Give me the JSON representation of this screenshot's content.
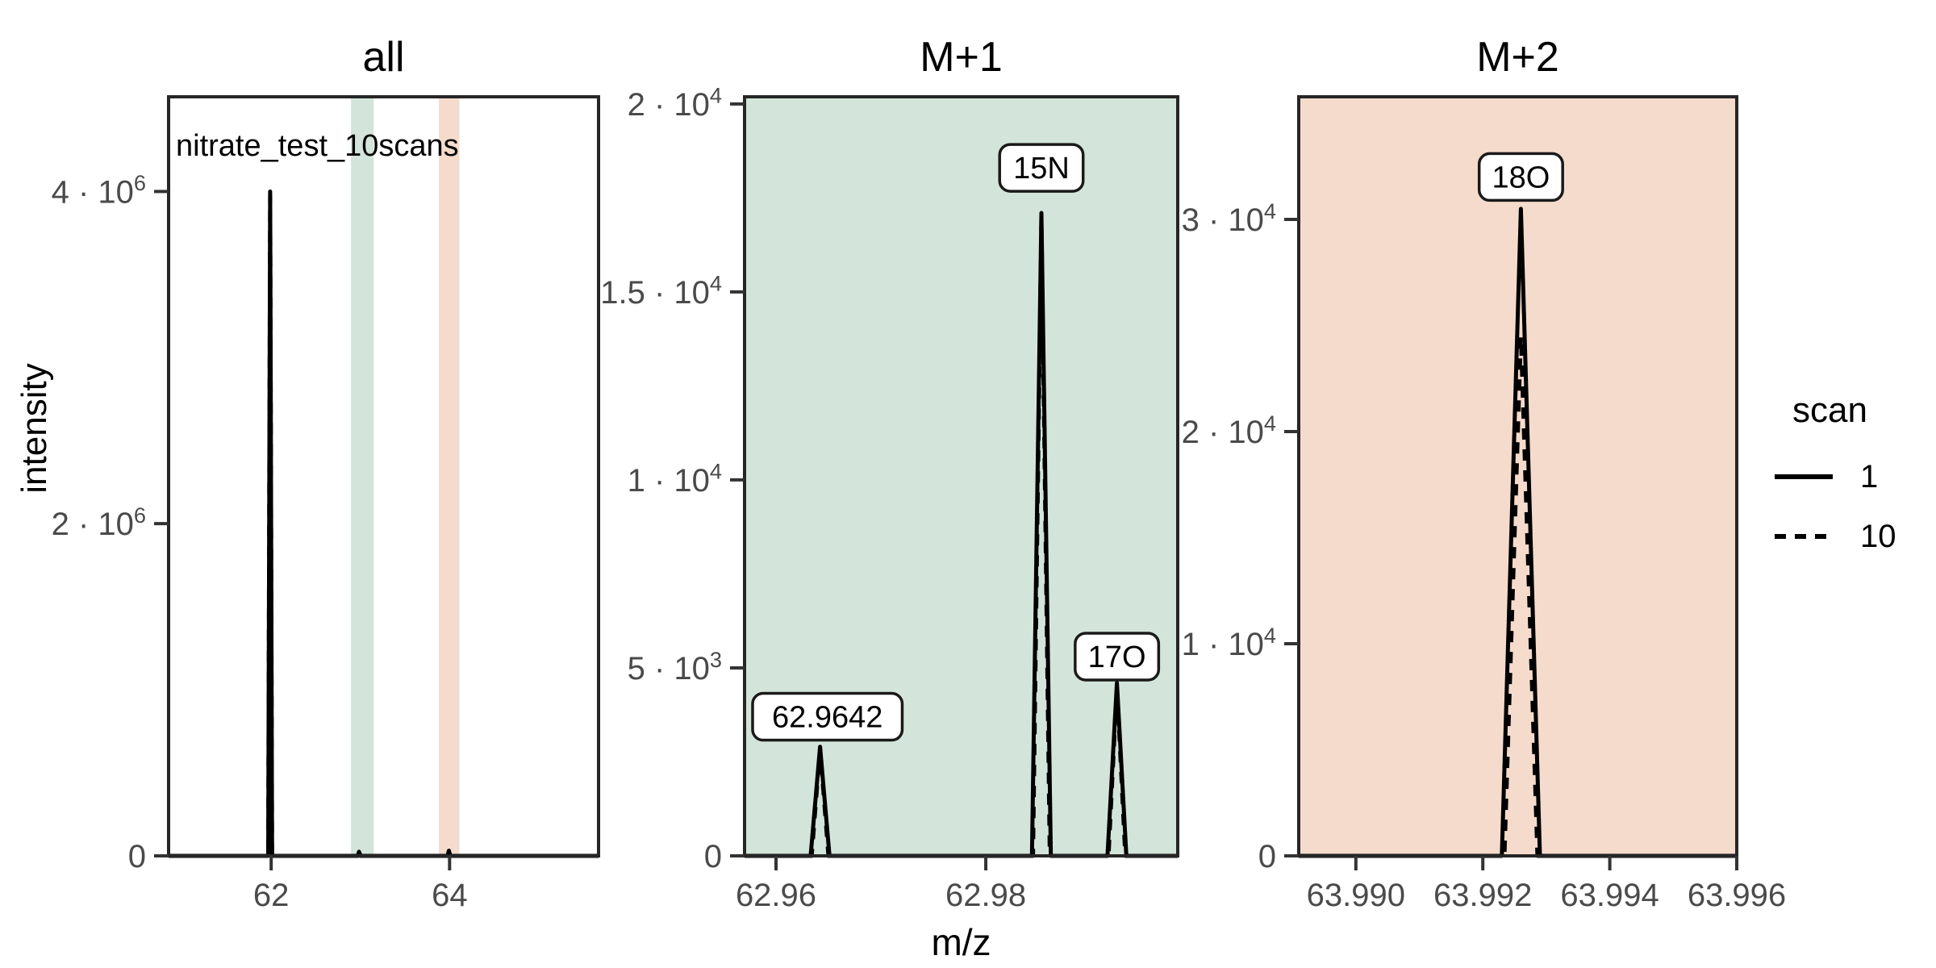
{
  "figure": {
    "background": "#ffffff"
  },
  "axes": {
    "y_label": "intensity",
    "x_label": "m/z"
  },
  "annotation": "nitrate_test_10scans",
  "legend": {
    "title": "scan",
    "items": [
      {
        "label": "1",
        "linetype": "solid"
      },
      {
        "label": "10",
        "linetype": "dashed"
      }
    ]
  },
  "colors": {
    "line": "#000000",
    "panel_border": "#262626",
    "tick": "#333333",
    "tick_text": "#4a4a4a",
    "text": "#000000",
    "m1_fill": "#d3e5da",
    "m2_fill": "#f5dbcb",
    "label_box_fill": "#ffffff",
    "label_box_border": "#1a1a1a"
  },
  "chart_data": [
    {
      "type": "line",
      "kind": "mass-spectrum",
      "title": "all",
      "panel_bg": "#ffffff",
      "x_range": [
        60.85,
        65.67
      ],
      "y_range": [
        0,
        4570000
      ],
      "x_ticks": [
        {
          "v": 62,
          "label": "62"
        },
        {
          "v": 64,
          "label": "64"
        }
      ],
      "y_ticks": [
        {
          "v": 0,
          "label": "0"
        },
        {
          "v": 2000000,
          "label": "2 · 10^6"
        },
        {
          "v": 4000000,
          "label": "4 · 10^6"
        }
      ],
      "bands": [
        {
          "name": "m1-window",
          "x0": 62.895,
          "x1": 63.15,
          "fill": "m1_fill"
        },
        {
          "name": "m2-window",
          "x0": 63.88,
          "x1": 64.11,
          "fill": "m2_fill"
        }
      ],
      "series": [
        {
          "name": "1",
          "linetype": "solid",
          "peaks": [
            {
              "mz": 61.9884,
              "intensity": 4000000,
              "hw": 0.022
            },
            {
              "mz": 62.9853,
              "intensity": 25000,
              "hw": 0.015
            },
            {
              "mz": 63.9926,
              "intensity": 31000,
              "hw": 0.015
            }
          ]
        },
        {
          "name": "10",
          "linetype": "dashed",
          "peaks": [
            {
              "mz": 61.9884,
              "intensity": 3970000,
              "hw": 0.022
            },
            {
              "mz": 62.9853,
              "intensity": 24000,
              "hw": 0.015
            },
            {
              "mz": 63.9926,
              "intensity": 30000,
              "hw": 0.015
            }
          ]
        }
      ],
      "peak_labels": []
    },
    {
      "type": "line",
      "kind": "mass-spectrum",
      "title": "M+1",
      "panel_bg": "#d3e5da",
      "x_range": [
        62.957,
        62.9983
      ],
      "y_range": [
        0,
        20190
      ],
      "x_ticks": [
        {
          "v": 62.96,
          "label": "62.96"
        },
        {
          "v": 62.98,
          "label": "62.98"
        }
      ],
      "y_ticks": [
        {
          "v": 0,
          "label": "0"
        },
        {
          "v": 5000,
          "label": "5 · 10^3"
        },
        {
          "v": 10000,
          "label": "1 · 10^4"
        },
        {
          "v": 15000,
          "label": "1.5 · 10^4"
        },
        {
          "v": 20000,
          "label": "2 · 10^4"
        }
      ],
      "bands": [],
      "series": [
        {
          "name": "1",
          "linetype": "solid",
          "peaks": [
            {
              "mz": 62.9642,
              "intensity": 2900,
              "hw": 0.0009
            },
            {
              "mz": 62.9853,
              "intensity": 17100,
              "hw": 0.0009
            },
            {
              "mz": 62.9925,
              "intensity": 4600,
              "hw": 0.0009
            }
          ]
        },
        {
          "name": "10",
          "linetype": "dashed",
          "peaks": [
            {
              "mz": 62.9642,
              "intensity": 2850,
              "hw": 0.0008
            },
            {
              "mz": 62.9853,
              "intensity": 16950,
              "hw": 0.0008
            },
            {
              "mz": 62.9925,
              "intensity": 4520,
              "hw": 0.0008
            }
          ]
        }
      ],
      "peak_labels": [
        {
          "text": "62.9642",
          "mz": 62.9649,
          "intensity": 3700
        },
        {
          "text": "15N",
          "mz": 62.9853,
          "intensity": 18300
        },
        {
          "text": "17O",
          "mz": 62.9925,
          "intensity": 5300
        }
      ]
    },
    {
      "type": "line",
      "kind": "mass-spectrum",
      "title": "M+2",
      "panel_bg": "#f5dbcb",
      "x_range": [
        63.9891,
        63.996
      ],
      "y_range": [
        0,
        35780
      ],
      "x_ticks": [
        {
          "v": 63.99,
          "label": "63.990"
        },
        {
          "v": 63.992,
          "label": "63.992"
        },
        {
          "v": 63.994,
          "label": "63.994"
        },
        {
          "v": 63.996,
          "label": "63.996"
        }
      ],
      "y_ticks": [
        {
          "v": 0,
          "label": "0"
        },
        {
          "v": 10000,
          "label": "1 · 10^4"
        },
        {
          "v": 20000,
          "label": "2 · 10^4"
        },
        {
          "v": 30000,
          "label": "3 · 10^4"
        }
      ],
      "bands": [],
      "series": [
        {
          "name": "1",
          "linetype": "solid",
          "peaks": [
            {
              "mz": 63.9926,
              "intensity": 30500,
              "hw": 0.0003
            }
          ]
        },
        {
          "name": "10",
          "linetype": "dashed",
          "peaks": [
            {
              "mz": 63.9926,
              "intensity": 24500,
              "hw": 0.00026
            }
          ]
        }
      ],
      "peak_labels": [
        {
          "text": "18O",
          "mz": 63.9926,
          "intensity": 32000
        }
      ]
    }
  ]
}
